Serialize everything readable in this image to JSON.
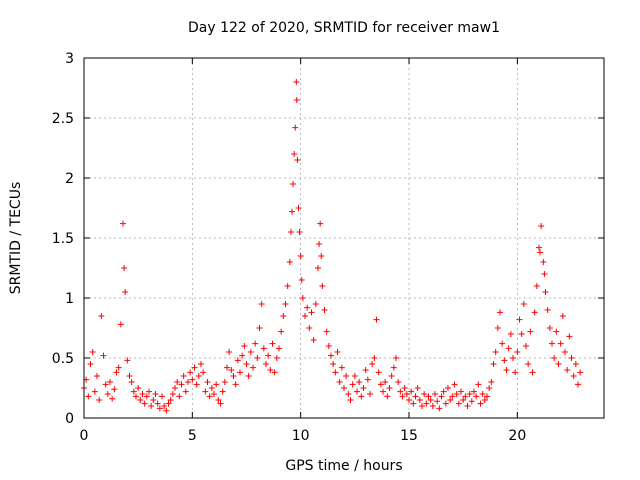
{
  "chart_data": {
    "type": "scatter",
    "title": "Day 122 of 2020, SRMTID for receiver maw1",
    "xlabel": "GPS time / hours",
    "ylabel": "SRMTID / TECUs",
    "xlim": [
      0,
      24
    ],
    "ylim": [
      0,
      3
    ],
    "xticks": [
      0,
      5,
      10,
      15,
      20
    ],
    "xtick_labels": [
      "0",
      "5",
      "10",
      "15",
      "20"
    ],
    "yticks": [
      0,
      0.5,
      1,
      1.5,
      2,
      2.5,
      3
    ],
    "ytick_labels": [
      "0",
      "0.5",
      "1",
      "1.5",
      "2",
      "2.5",
      "3"
    ],
    "grid": true,
    "marker": "+",
    "series": [
      {
        "name": "SRMTID",
        "color": "#ff0000",
        "points": [
          [
            0.0,
            0.25
          ],
          [
            0.1,
            0.32
          ],
          [
            0.2,
            0.18
          ],
          [
            0.3,
            0.45
          ],
          [
            0.4,
            0.55
          ],
          [
            0.5,
            0.22
          ],
          [
            0.6,
            0.35
          ],
          [
            0.7,
            0.15
          ],
          [
            0.8,
            0.85
          ],
          [
            0.9,
            0.52
          ],
          [
            1.0,
            0.28
          ],
          [
            1.1,
            0.2
          ],
          [
            1.2,
            0.3
          ],
          [
            1.3,
            0.16
          ],
          [
            1.4,
            0.24
          ],
          [
            1.5,
            0.38
          ],
          [
            1.6,
            0.42
          ],
          [
            1.7,
            0.78
          ],
          [
            1.8,
            1.62
          ],
          [
            1.85,
            1.25
          ],
          [
            1.9,
            1.05
          ],
          [
            2.0,
            0.48
          ],
          [
            2.1,
            0.35
          ],
          [
            2.2,
            0.3
          ],
          [
            2.3,
            0.22
          ],
          [
            2.4,
            0.18
          ],
          [
            2.5,
            0.25
          ],
          [
            2.6,
            0.15
          ],
          [
            2.7,
            0.2
          ],
          [
            2.8,
            0.12
          ],
          [
            2.9,
            0.18
          ],
          [
            3.0,
            0.22
          ],
          [
            3.1,
            0.1
          ],
          [
            3.2,
            0.15
          ],
          [
            3.3,
            0.2
          ],
          [
            3.4,
            0.12
          ],
          [
            3.5,
            0.08
          ],
          [
            3.6,
            0.18
          ],
          [
            3.7,
            0.1
          ],
          [
            3.8,
            0.06
          ],
          [
            3.9,
            0.12
          ],
          [
            4.0,
            0.15
          ],
          [
            4.1,
            0.2
          ],
          [
            4.2,
            0.25
          ],
          [
            4.3,
            0.3
          ],
          [
            4.4,
            0.18
          ],
          [
            4.5,
            0.28
          ],
          [
            4.6,
            0.35
          ],
          [
            4.7,
            0.22
          ],
          [
            4.8,
            0.3
          ],
          [
            4.9,
            0.38
          ],
          [
            5.0,
            0.32
          ],
          [
            5.1,
            0.42
          ],
          [
            5.2,
            0.28
          ],
          [
            5.3,
            0.35
          ],
          [
            5.4,
            0.45
          ],
          [
            5.5,
            0.38
          ],
          [
            5.6,
            0.22
          ],
          [
            5.7,
            0.3
          ],
          [
            5.8,
            0.18
          ],
          [
            5.9,
            0.25
          ],
          [
            6.0,
            0.2
          ],
          [
            6.1,
            0.28
          ],
          [
            6.2,
            0.15
          ],
          [
            6.3,
            0.12
          ],
          [
            6.4,
            0.22
          ],
          [
            6.5,
            0.3
          ],
          [
            6.6,
            0.42
          ],
          [
            6.7,
            0.55
          ],
          [
            6.8,
            0.4
          ],
          [
            6.9,
            0.35
          ],
          [
            7.0,
            0.28
          ],
          [
            7.1,
            0.48
          ],
          [
            7.2,
            0.38
          ],
          [
            7.3,
            0.52
          ],
          [
            7.4,
            0.6
          ],
          [
            7.5,
            0.45
          ],
          [
            7.6,
            0.35
          ],
          [
            7.7,
            0.55
          ],
          [
            7.8,
            0.42
          ],
          [
            7.9,
            0.62
          ],
          [
            8.0,
            0.5
          ],
          [
            8.1,
            0.75
          ],
          [
            8.2,
            0.95
          ],
          [
            8.3,
            0.58
          ],
          [
            8.4,
            0.45
          ],
          [
            8.5,
            0.52
          ],
          [
            8.6,
            0.4
          ],
          [
            8.7,
            0.62
          ],
          [
            8.8,
            0.38
          ],
          [
            8.9,
            0.5
          ],
          [
            9.0,
            0.58
          ],
          [
            9.1,
            0.72
          ],
          [
            9.2,
            0.85
          ],
          [
            9.3,
            0.95
          ],
          [
            9.4,
            1.1
          ],
          [
            9.5,
            1.3
          ],
          [
            9.55,
            1.55
          ],
          [
            9.6,
            1.72
          ],
          [
            9.65,
            1.95
          ],
          [
            9.7,
            2.2
          ],
          [
            9.75,
            2.42
          ],
          [
            9.8,
            2.8
          ],
          [
            9.82,
            2.65
          ],
          [
            9.85,
            2.15
          ],
          [
            9.9,
            1.75
          ],
          [
            9.95,
            1.55
          ],
          [
            10.0,
            1.35
          ],
          [
            10.05,
            1.15
          ],
          [
            10.1,
            1.0
          ],
          [
            10.2,
            0.85
          ],
          [
            10.3,
            0.92
          ],
          [
            10.4,
            0.75
          ],
          [
            10.5,
            0.88
          ],
          [
            10.6,
            0.65
          ],
          [
            10.7,
            0.95
          ],
          [
            10.8,
            1.25
          ],
          [
            10.85,
            1.45
          ],
          [
            10.9,
            1.62
          ],
          [
            10.95,
            1.35
          ],
          [
            11.0,
            1.1
          ],
          [
            11.1,
            0.9
          ],
          [
            11.2,
            0.72
          ],
          [
            11.3,
            0.6
          ],
          [
            11.4,
            0.52
          ],
          [
            11.5,
            0.45
          ],
          [
            11.6,
            0.38
          ],
          [
            11.7,
            0.55
          ],
          [
            11.8,
            0.3
          ],
          [
            11.9,
            0.42
          ],
          [
            12.0,
            0.25
          ],
          [
            12.1,
            0.35
          ],
          [
            12.2,
            0.2
          ],
          [
            12.3,
            0.15
          ],
          [
            12.4,
            0.28
          ],
          [
            12.5,
            0.35
          ],
          [
            12.6,
            0.22
          ],
          [
            12.7,
            0.3
          ],
          [
            12.8,
            0.18
          ],
          [
            12.9,
            0.25
          ],
          [
            13.0,
            0.4
          ],
          [
            13.1,
            0.32
          ],
          [
            13.2,
            0.2
          ],
          [
            13.3,
            0.45
          ],
          [
            13.4,
            0.5
          ],
          [
            13.5,
            0.82
          ],
          [
            13.6,
            0.38
          ],
          [
            13.7,
            0.28
          ],
          [
            13.8,
            0.22
          ],
          [
            13.9,
            0.3
          ],
          [
            14.0,
            0.18
          ],
          [
            14.1,
            0.25
          ],
          [
            14.2,
            0.35
          ],
          [
            14.3,
            0.42
          ],
          [
            14.4,
            0.5
          ],
          [
            14.5,
            0.3
          ],
          [
            14.6,
            0.22
          ],
          [
            14.7,
            0.18
          ],
          [
            14.8,
            0.25
          ],
          [
            14.9,
            0.2
          ],
          [
            15.0,
            0.15
          ],
          [
            15.1,
            0.22
          ],
          [
            15.2,
            0.12
          ],
          [
            15.3,
            0.18
          ],
          [
            15.4,
            0.25
          ],
          [
            15.5,
            0.15
          ],
          [
            15.6,
            0.1
          ],
          [
            15.7,
            0.2
          ],
          [
            15.8,
            0.12
          ],
          [
            15.9,
            0.18
          ],
          [
            16.0,
            0.15
          ],
          [
            16.1,
            0.1
          ],
          [
            16.2,
            0.2
          ],
          [
            16.3,
            0.14
          ],
          [
            16.4,
            0.08
          ],
          [
            16.5,
            0.18
          ],
          [
            16.6,
            0.22
          ],
          [
            16.7,
            0.12
          ],
          [
            16.8,
            0.25
          ],
          [
            16.9,
            0.15
          ],
          [
            17.0,
            0.18
          ],
          [
            17.1,
            0.28
          ],
          [
            17.2,
            0.2
          ],
          [
            17.3,
            0.12
          ],
          [
            17.4,
            0.22
          ],
          [
            17.5,
            0.15
          ],
          [
            17.6,
            0.18
          ],
          [
            17.7,
            0.1
          ],
          [
            17.8,
            0.2
          ],
          [
            17.9,
            0.14
          ],
          [
            18.0,
            0.22
          ],
          [
            18.1,
            0.18
          ],
          [
            18.2,
            0.28
          ],
          [
            18.3,
            0.12
          ],
          [
            18.4,
            0.2
          ],
          [
            18.5,
            0.15
          ],
          [
            18.6,
            0.18
          ],
          [
            18.7,
            0.25
          ],
          [
            18.8,
            0.3
          ],
          [
            18.9,
            0.45
          ],
          [
            19.0,
            0.55
          ],
          [
            19.1,
            0.75
          ],
          [
            19.2,
            0.88
          ],
          [
            19.3,
            0.62
          ],
          [
            19.4,
            0.48
          ],
          [
            19.5,
            0.4
          ],
          [
            19.6,
            0.58
          ],
          [
            19.7,
            0.7
          ],
          [
            19.8,
            0.5
          ],
          [
            19.9,
            0.38
          ],
          [
            20.0,
            0.55
          ],
          [
            20.1,
            0.82
          ],
          [
            20.2,
            0.7
          ],
          [
            20.3,
            0.95
          ],
          [
            20.4,
            0.6
          ],
          [
            20.5,
            0.45
          ],
          [
            20.6,
            0.72
          ],
          [
            20.7,
            0.38
          ],
          [
            20.8,
            0.88
          ],
          [
            20.9,
            1.1
          ],
          [
            21.0,
            1.42
          ],
          [
            21.05,
            1.38
          ],
          [
            21.1,
            1.6
          ],
          [
            21.2,
            1.3
          ],
          [
            21.25,
            1.2
          ],
          [
            21.3,
            1.05
          ],
          [
            21.4,
            0.9
          ],
          [
            21.5,
            0.75
          ],
          [
            21.6,
            0.62
          ],
          [
            21.7,
            0.5
          ],
          [
            21.8,
            0.72
          ],
          [
            21.9,
            0.45
          ],
          [
            22.0,
            0.62
          ],
          [
            22.1,
            0.85
          ],
          [
            22.2,
            0.55
          ],
          [
            22.3,
            0.4
          ],
          [
            22.4,
            0.68
          ],
          [
            22.5,
            0.5
          ],
          [
            22.6,
            0.35
          ],
          [
            22.7,
            0.45
          ],
          [
            22.8,
            0.28
          ],
          [
            22.9,
            0.38
          ]
        ]
      }
    ]
  }
}
